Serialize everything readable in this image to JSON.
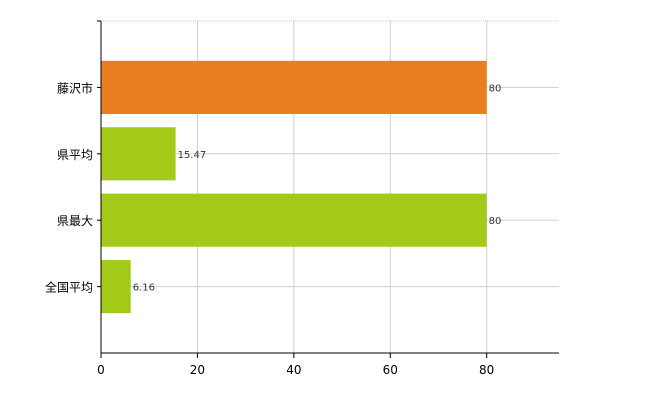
{
  "chart_data": {
    "type": "bar",
    "orientation": "horizontal",
    "categories": [
      "藤沢市",
      "県平均",
      "県最大",
      "全国平均"
    ],
    "values": [
      80,
      15.47,
      80,
      6.16
    ],
    "data_labels": [
      "80",
      "15.47",
      "80",
      "6.16"
    ],
    "bar_colors": [
      "#e87e1f",
      "#a3c919",
      "#a3c919",
      "#a3c919"
    ],
    "xlim": [
      0,
      95
    ],
    "x_ticks": [
      0,
      20,
      40,
      60,
      80
    ],
    "x_tick_labels": [
      "0",
      "20",
      "40",
      "60",
      "80"
    ],
    "grid": true,
    "title": "",
    "xlabel": "",
    "ylabel": ""
  }
}
